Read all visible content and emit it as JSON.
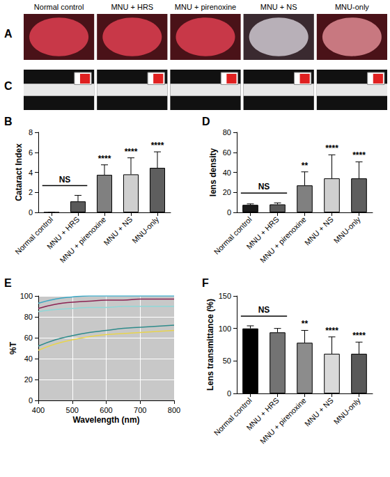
{
  "photo_rows": [
    {
      "panel": "A",
      "labels": [
        "Normal control",
        "MNU + HRS",
        "MNU + pirenoxine",
        "MNU + NS",
        "MNU-only"
      ]
    },
    {
      "panel": "C"
    }
  ],
  "chart_data": [
    {
      "panel": "B",
      "type": "bar",
      "categories": [
        "Normal control",
        "MNU + HRS",
        "MNU + pirenoxine",
        "MNU + NS",
        "MNU-only"
      ],
      "values": [
        0,
        1.1,
        3.75,
        3.8,
        4.45
      ],
      "errors": [
        0,
        0.6,
        1.0,
        1.65,
        1.6
      ],
      "colors": [
        "#1a1a1a",
        "#5a5a5a",
        "#808080",
        "#cfcfcf",
        "#5e5e5e"
      ],
      "ylabel": "Cataract Index",
      "ylim": [
        0,
        8
      ],
      "yticks": [
        0,
        2,
        4,
        6,
        8
      ],
      "grid": false,
      "significance": {
        "bracket": {
          "label": "NS",
          "categories": [
            "Normal control",
            "MNU + HRS"
          ]
        },
        "labels": [
          null,
          null,
          "****",
          "****",
          "****"
        ]
      }
    },
    {
      "panel": "D",
      "type": "bar",
      "categories": [
        "Normal control",
        "MNU + HRS",
        "MNU + pirenoxine",
        "MNU + NS",
        "MNU-only"
      ],
      "values": [
        7.5,
        8,
        27,
        34,
        34
      ],
      "errors": [
        1,
        1.5,
        13.5,
        23.5,
        16.5
      ],
      "colors": [
        "#1a1a1a",
        "#5a5a5a",
        "#808080",
        "#cfcfcf",
        "#5e5e5e"
      ],
      "ylabel": "lens density",
      "ylim": [
        0,
        80
      ],
      "yticks": [
        0,
        20,
        40,
        60,
        80
      ],
      "grid": false,
      "significance": {
        "bracket": {
          "label": "NS",
          "categories": [
            "Normal control",
            "MNU + HRS"
          ]
        },
        "labels": [
          null,
          null,
          "**",
          "****",
          "****"
        ]
      }
    },
    {
      "panel": "E",
      "type": "line",
      "xlabel": "Wavelength (nm)",
      "ylabel": "%T",
      "x": [
        400,
        450,
        500,
        550,
        600,
        650,
        700,
        750,
        800
      ],
      "series": [
        {
          "color": "#3aa7c4",
          "values": [
            93,
            97,
            99,
            100,
            100,
            100,
            100,
            100,
            100
          ]
        },
        {
          "color": "#8b2252",
          "values": [
            88,
            92,
            94,
            95,
            96,
            96,
            97,
            97,
            97
          ]
        },
        {
          "color": "#8fd8d8",
          "values": [
            85,
            87,
            88,
            89,
            89,
            90,
            90,
            90,
            90
          ]
        },
        {
          "color": "#2e8b8b",
          "values": [
            52,
            58,
            62,
            65,
            67,
            69,
            70,
            71,
            72
          ]
        },
        {
          "color": "#e8d44d",
          "values": [
            48,
            54,
            58,
            61,
            63,
            64,
            65,
            66,
            67
          ]
        }
      ],
      "xlim": [
        400,
        800
      ],
      "xticks": [
        400,
        500,
        600,
        700,
        800
      ],
      "ylim": [
        0,
        100
      ],
      "yticks": [
        0,
        20,
        40,
        60,
        80,
        100
      ],
      "grid": true
    },
    {
      "panel": "F",
      "type": "bar",
      "categories": [
        "Normal control",
        "MNU + HRS",
        "MNU + pirenoxine",
        "MNU + NS",
        "MNU-only"
      ],
      "values": [
        100,
        94,
        78,
        61,
        61
      ],
      "errors": [
        4,
        6,
        19,
        26,
        18
      ],
      "colors": [
        "#000000",
        "#737373",
        "#8c8c8c",
        "#d9d9d9",
        "#595959"
      ],
      "ylabel": "Lens transmittance (%)",
      "ylim": [
        0,
        150
      ],
      "yticks": [
        0,
        50,
        100,
        150
      ],
      "grid": false,
      "significance": {
        "bracket": {
          "label": "NS",
          "categories": [
            "Normal control",
            "MNU + HRS"
          ]
        },
        "labels": [
          null,
          null,
          "**",
          "****",
          "****"
        ]
      }
    }
  ]
}
